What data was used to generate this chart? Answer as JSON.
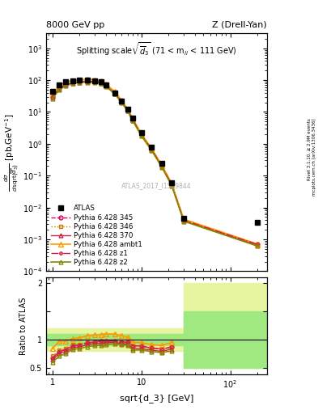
{
  "title_left": "8000 GeV pp",
  "title_right": "Z (Drell-Yan)",
  "plot_title": "Splitting scale $\\sqrt{\\overline{d}_3}$ (71 < m$_{ll}$ < 111 GeV)",
  "ylabel_main": "d$\\sigma$\n/dsqrt($\\overline{d_3}$) [pb,GeV$^{-1}$]",
  "ylabel_ratio": "Ratio to ATLAS",
  "xlabel": "sqrt{d_3} [GeV]",
  "watermark": "ATLAS_2017_I1589844",
  "right_label": "Rivet 3.1.10, ≥ 2.9M events\nmcplots.cern.ch [arXiv:1306.3436]",
  "x_data": [
    1.0,
    1.2,
    1.4,
    1.7,
    2.0,
    2.5,
    3.0,
    3.5,
    4.0,
    5.0,
    6.0,
    7.0,
    8.0,
    10.0,
    13.0,
    17.0,
    22.0,
    30.0,
    200.0
  ],
  "atlas_y": [
    45.0,
    70.0,
    88.0,
    95.0,
    100.0,
    98.0,
    95.0,
    88.0,
    70.0,
    40.0,
    22.0,
    12.0,
    6.5,
    2.2,
    0.8,
    0.24,
    0.06,
    0.0045,
    0.0035
  ],
  "py345_y": [
    30.0,
    55.0,
    72.0,
    85.0,
    90.0,
    92.0,
    91.0,
    85.0,
    68.0,
    39.0,
    21.0,
    11.5,
    5.8,
    1.95,
    0.68,
    0.2,
    0.052,
    0.004,
    0.0007
  ],
  "py346_y": [
    32.0,
    57.0,
    74.0,
    87.0,
    92.0,
    93.0,
    91.0,
    85.0,
    68.0,
    39.0,
    21.0,
    11.5,
    5.8,
    1.95,
    0.68,
    0.2,
    0.052,
    0.004,
    0.0007
  ],
  "py370_y": [
    29.0,
    53.0,
    69.0,
    82.0,
    87.0,
    89.0,
    88.0,
    82.0,
    66.0,
    38.0,
    20.5,
    11.0,
    5.5,
    1.85,
    0.65,
    0.19,
    0.05,
    0.0038,
    0.00065
  ],
  "pyambt1_y": [
    38.0,
    68.0,
    85.0,
    97.0,
    103.0,
    105.0,
    103.0,
    96.0,
    77.0,
    44.0,
    23.5,
    12.5,
    6.2,
    2.08,
    0.73,
    0.215,
    0.057,
    0.0043,
    0.00072
  ],
  "pyz1_y": [
    30.0,
    55.0,
    72.0,
    85.0,
    90.0,
    92.0,
    91.0,
    85.0,
    68.0,
    39.0,
    21.0,
    11.5,
    5.8,
    1.95,
    0.68,
    0.2,
    0.052,
    0.004,
    0.0007
  ],
  "pyz2_y": [
    27.0,
    50.0,
    66.0,
    79.0,
    84.0,
    86.0,
    85.0,
    79.0,
    64.0,
    37.0,
    20.0,
    10.8,
    5.3,
    1.8,
    0.63,
    0.185,
    0.048,
    0.0037,
    0.00062
  ],
  "ratio_x": [
    1.0,
    1.2,
    1.4,
    1.7,
    2.0,
    2.5,
    3.0,
    3.5,
    4.0,
    5.0,
    6.0,
    7.0,
    8.0,
    10.0,
    13.0,
    17.0,
    22.0
  ],
  "r345": [
    0.67,
    0.79,
    0.82,
    0.89,
    0.9,
    0.94,
    0.96,
    0.97,
    0.97,
    0.975,
    0.955,
    0.958,
    0.892,
    0.886,
    0.85,
    0.833,
    0.867
  ],
  "r346": [
    0.71,
    0.81,
    0.84,
    0.92,
    0.92,
    0.95,
    0.96,
    0.97,
    0.97,
    0.975,
    0.955,
    0.958,
    0.892,
    0.886,
    0.85,
    0.833,
    0.867
  ],
  "r370": [
    0.64,
    0.76,
    0.78,
    0.86,
    0.87,
    0.91,
    0.93,
    0.93,
    0.943,
    0.95,
    0.932,
    0.917,
    0.846,
    0.841,
    0.813,
    0.792,
    0.833
  ],
  "rambt1": [
    0.84,
    0.97,
    0.97,
    1.02,
    1.03,
    1.07,
    1.08,
    1.09,
    1.1,
    1.1,
    1.068,
    1.042,
    0.954,
    0.945,
    0.913,
    0.896,
    0.95
  ],
  "rz1": [
    0.67,
    0.79,
    0.82,
    0.89,
    0.9,
    0.94,
    0.96,
    0.97,
    0.97,
    0.975,
    0.955,
    0.958,
    0.892,
    0.886,
    0.85,
    0.833,
    0.867
  ],
  "rz2": [
    0.6,
    0.71,
    0.75,
    0.83,
    0.84,
    0.878,
    0.895,
    0.898,
    0.914,
    0.925,
    0.909,
    0.9,
    0.815,
    0.818,
    0.788,
    0.771,
    0.8
  ],
  "band_green_lo": 0.9,
  "band_green_hi": 1.1,
  "band_yellow_lo": 0.8,
  "band_yellow_hi": 1.2,
  "band_x_split": 30.0,
  "band_green_hi2": 1.5,
  "band_green_lo2": 0.5,
  "band_yellow_hi2": 2.0,
  "band_yellow_lo2": 0.5,
  "color_345": "#e8005a",
  "color_346": "#cc7700",
  "color_370": "#cc2244",
  "color_ambt1": "#ff9900",
  "color_z1": "#cc2244",
  "color_z2": "#888800",
  "ylim_main": [
    0.0001,
    3000.0
  ],
  "ylim_ratio": [
    0.38,
    2.1
  ],
  "xlim": [
    0.85,
    260.0
  ]
}
